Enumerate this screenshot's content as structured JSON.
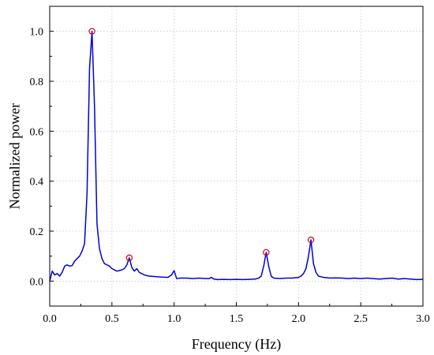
{
  "chart_data": {
    "type": "line",
    "title": "",
    "xlabel": "Frequency (Hz)",
    "ylabel": "Normalized power",
    "xlim": [
      0.0,
      3.0
    ],
    "ylim": [
      -0.1,
      1.1
    ],
    "x_ticks": [
      0.0,
      0.5,
      1.0,
      1.5,
      2.0,
      2.5,
      3.0
    ],
    "x_tick_labels": [
      "0.0",
      "0.5",
      "1.0",
      "1.5",
      "2.0",
      "2.5",
      "3.0"
    ],
    "y_ticks": [
      0.0,
      0.2,
      0.4,
      0.6,
      0.8,
      1.0
    ],
    "y_tick_labels": [
      "0.0",
      "0.2",
      "0.4",
      "0.6",
      "0.8",
      "1.0"
    ],
    "grid": true,
    "line_color": "#0000dd",
    "marker_color": "#dd0000",
    "series": [
      {
        "x": [
          0.0,
          0.02,
          0.04,
          0.06,
          0.08,
          0.1,
          0.12,
          0.14,
          0.16,
          0.18,
          0.2,
          0.22,
          0.24,
          0.26,
          0.28,
          0.3,
          0.32,
          0.34,
          0.36,
          0.38,
          0.4,
          0.42,
          0.44,
          0.46,
          0.48,
          0.5,
          0.52,
          0.54,
          0.56,
          0.58,
          0.6,
          0.62,
          0.64,
          0.66,
          0.68,
          0.7,
          0.72,
          0.74,
          0.76,
          0.78,
          0.8,
          0.85,
          0.9,
          0.95,
          0.98,
          1.0,
          1.02,
          1.05,
          1.1,
          1.15,
          1.2,
          1.25,
          1.28,
          1.3,
          1.32,
          1.35,
          1.4,
          1.45,
          1.5,
          1.55,
          1.6,
          1.65,
          1.68,
          1.7,
          1.72,
          1.74,
          1.76,
          1.78,
          1.8,
          1.85,
          1.9,
          1.95,
          2.0,
          2.02,
          2.04,
          2.06,
          2.08,
          2.1,
          2.12,
          2.14,
          2.16,
          2.2,
          2.25,
          2.3,
          2.35,
          2.4,
          2.45,
          2.5,
          2.55,
          2.6,
          2.65,
          2.7,
          2.75,
          2.8,
          2.85,
          2.9,
          2.95,
          3.0
        ],
        "y": [
          0.0,
          0.04,
          0.025,
          0.03,
          0.02,
          0.035,
          0.06,
          0.065,
          0.06,
          0.062,
          0.08,
          0.09,
          0.1,
          0.12,
          0.15,
          0.35,
          0.85,
          1.0,
          0.7,
          0.23,
          0.13,
          0.09,
          0.07,
          0.065,
          0.06,
          0.05,
          0.045,
          0.04,
          0.042,
          0.045,
          0.05,
          0.065,
          0.093,
          0.055,
          0.04,
          0.05,
          0.035,
          0.03,
          0.025,
          0.022,
          0.02,
          0.018,
          0.016,
          0.015,
          0.025,
          0.042,
          0.01,
          0.012,
          0.012,
          0.01,
          0.012,
          0.01,
          0.01,
          0.015,
          0.008,
          0.006,
          0.007,
          0.006,
          0.007,
          0.006,
          0.007,
          0.008,
          0.012,
          0.02,
          0.06,
          0.115,
          0.06,
          0.02,
          0.012,
          0.01,
          0.012,
          0.012,
          0.015,
          0.02,
          0.03,
          0.05,
          0.1,
          0.165,
          0.07,
          0.035,
          0.02,
          0.015,
          0.012,
          0.013,
          0.012,
          0.01,
          0.012,
          0.01,
          0.012,
          0.01,
          0.008,
          0.01,
          0.012,
          0.008,
          0.01,
          0.008,
          0.006,
          0.007
        ]
      }
    ],
    "peaks": [
      {
        "x": 0.34,
        "y": 1.0
      },
      {
        "x": 0.64,
        "y": 0.093
      },
      {
        "x": 1.74,
        "y": 0.115
      },
      {
        "x": 2.1,
        "y": 0.165
      }
    ]
  }
}
